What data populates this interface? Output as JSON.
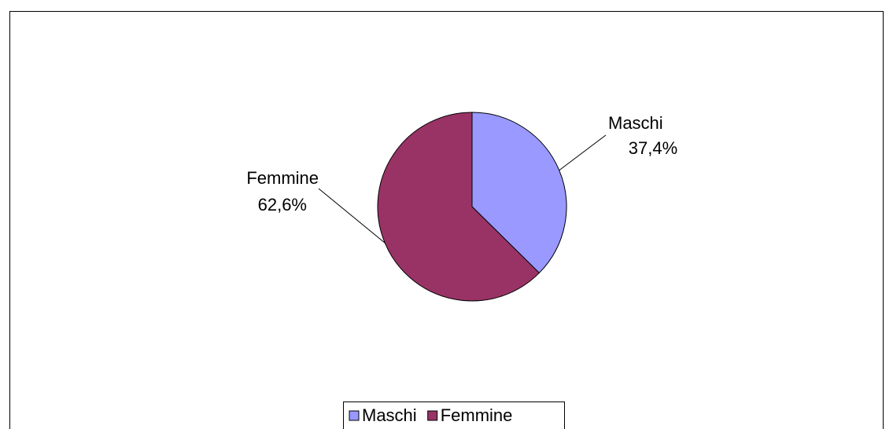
{
  "chart_data": {
    "type": "pie",
    "categories": [
      "Maschi",
      "Femmine"
    ],
    "values": [
      37.4,
      62.6
    ],
    "value_labels": [
      "37,4%",
      "62,6%"
    ],
    "colors": [
      "#9999ff",
      "#993366"
    ],
    "legend": "bottom"
  }
}
